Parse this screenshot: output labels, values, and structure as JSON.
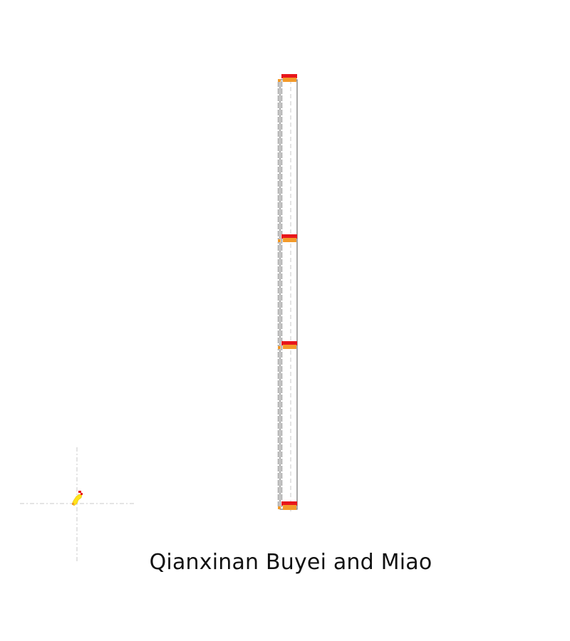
{
  "map": {
    "title": "Qianxinan Buyei and Miao",
    "colors": {
      "background": "#ffffff",
      "boundary": "#6f6f6f",
      "guide_line": "#c8c8c8",
      "marker_red": "#e8161b",
      "marker_orange": "#f39a2a",
      "locator_yellow": "#ffe21a",
      "locator_red": "#e8161b"
    },
    "marker_count": 4,
    "icons": {
      "locator": "locator-marker-icon",
      "segment_marker": "segment-marker-icon"
    }
  }
}
